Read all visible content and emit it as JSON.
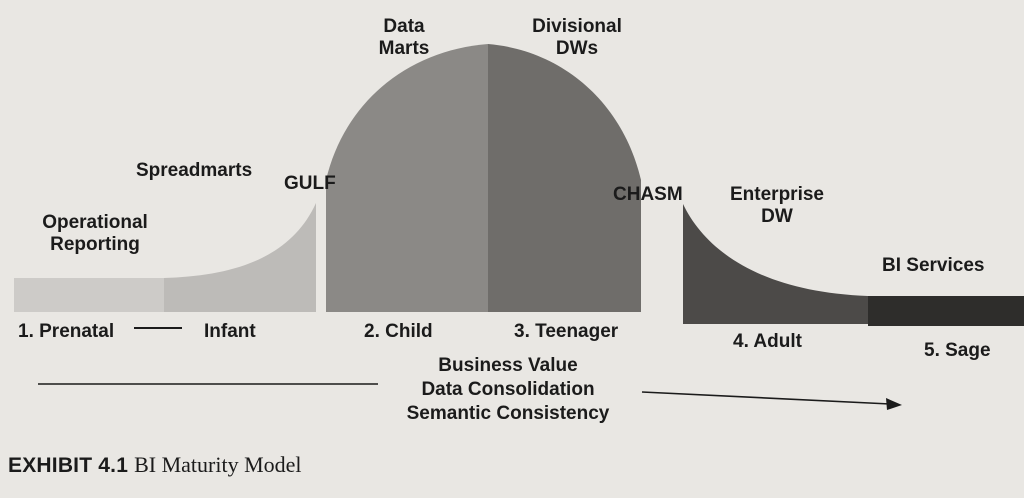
{
  "diagram": {
    "stage_labels": {
      "operational_reporting": [
        "Operational",
        "Reporting"
      ],
      "spreadmarts": "Spreadmarts",
      "gulf": "GULF",
      "data_marts": [
        "Data",
        "Marts"
      ],
      "divisional_dws": [
        "Divisional",
        "DWs"
      ],
      "chasm": "CHASM",
      "enterprise_dw": [
        "Enterprise",
        "DW"
      ],
      "bi_services": "BI Services"
    },
    "phases": {
      "prenatal": "1. Prenatal",
      "infant": "Infant",
      "child": "2. Child",
      "teenager": "3. Teenager",
      "adult": "4. Adult",
      "sage": "5. Sage"
    },
    "value_axis": [
      "Business Value",
      "Data Consolidation",
      "Semantic Consistency"
    ],
    "colors": {
      "prenatal": "#cdcbc8",
      "infant": "#bdbbb8",
      "child": "#8b8986",
      "teenager": "#6f6d6a",
      "adult": "#4c4a48",
      "sage": "#2e2d2b"
    }
  },
  "caption": {
    "tag": "EXHIBIT 4.1",
    "title": "BI Maturity Model"
  }
}
